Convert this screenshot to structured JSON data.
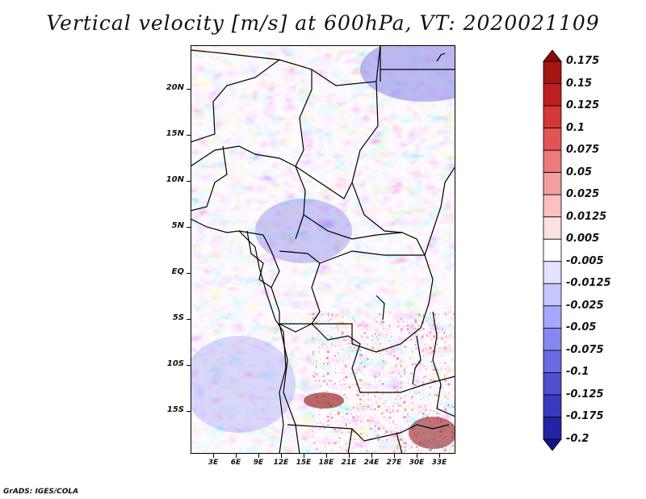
{
  "title": "Vertical velocity [m/s] at 600hPa, VT: 2020021109",
  "lat_labels": [
    "20N",
    "15N",
    "10N",
    "5N",
    "EQ",
    "5S",
    "10S",
    "15S"
  ],
  "lon_labels": [
    "3E",
    "6E",
    "9E",
    "12E",
    "15E",
    "18E",
    "21E",
    "24E",
    "27E",
    "30E",
    "33E"
  ],
  "colorbar": {
    "labels": [
      "0.175",
      "0.15",
      "0.125",
      "0.1",
      "0.075",
      "0.05",
      "0.025",
      "0.0125",
      "0.005",
      "-0.005",
      "-0.0125",
      "-0.025",
      "-0.05",
      "-0.075",
      "-0.1",
      "-0.125",
      "-0.175",
      "-0.2"
    ],
    "colors": [
      "#8a0a0a",
      "#a61414",
      "#c01f1f",
      "#d63636",
      "#e25454",
      "#ec7a7a",
      "#f49e9e",
      "#fac0c0",
      "#fde0e0",
      "#ffffff",
      "#e2e2ff",
      "#c6c6ff",
      "#a6a6ff",
      "#8787f2",
      "#6a6ae2",
      "#4f4fd2",
      "#3838c0",
      "#2323a8",
      "#13138a"
    ]
  },
  "credit": "GrADS: IGES/COLA"
}
